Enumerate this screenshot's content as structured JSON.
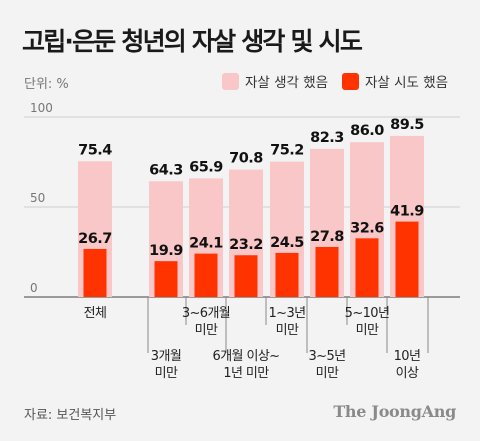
{
  "header": {
    "title": "고립·은둔 청년의 자살 생각 및 시도",
    "unit": "단위: %"
  },
  "legend": {
    "items": [
      {
        "label": "자살 생각 했음",
        "color": "#f9c7c7"
      },
      {
        "label": "자살 시도 했음",
        "color": "#ff3300"
      }
    ]
  },
  "footer": {
    "source": "자료: 보건복지부",
    "brand": "The JoongAng"
  },
  "chart_data": {
    "type": "bar",
    "title": "고립·은둔 청년의 자살 생각 및 시도",
    "ylabel": "단위: %",
    "ylim": [
      0,
      100
    ],
    "yticks": [
      0,
      50,
      100
    ],
    "categories": [
      "전체",
      "3개월 미만",
      "3~6개월 미만",
      "6개월 이상~ 1년 미만",
      "1~3년 미만",
      "3~5년 미만",
      "5~10년 미만",
      "10년 이상"
    ],
    "category_label_lines": [
      [
        "전체"
      ],
      [
        "3개월",
        "미만"
      ],
      [
        "3~6개월",
        "미만"
      ],
      [
        "6개월 이상~",
        "1년 미만"
      ],
      [
        "1~3년",
        "미만"
      ],
      [
        "3~5년",
        "미만"
      ],
      [
        "5~10년",
        "미만"
      ],
      [
        "10년",
        "이상"
      ]
    ],
    "series": [
      {
        "name": "자살 생각 했음",
        "color": "#f9c7c7",
        "values": [
          75.4,
          64.3,
          65.9,
          70.8,
          75.2,
          82.3,
          86.0,
          89.5
        ]
      },
      {
        "name": "자살 시도 했음",
        "color": "#ff3300",
        "values": [
          26.7,
          19.9,
          24.1,
          23.2,
          24.5,
          27.8,
          32.6,
          41.9
        ]
      }
    ],
    "value_labels": [
      [
        "75.4",
        "64.3",
        "65.9",
        "70.8",
        "75.2",
        "82.3",
        "86.0",
        "89.5"
      ],
      [
        "26.7",
        "19.9",
        "24.1",
        "23.2",
        "24.5",
        "27.8",
        "32.6",
        "41.9"
      ]
    ],
    "grid": true,
    "legend_position": "top-right"
  }
}
